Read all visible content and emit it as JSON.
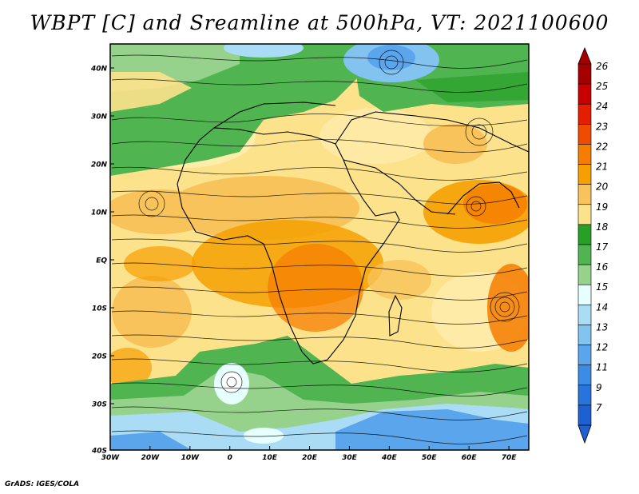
{
  "title": "WBPT [C] and Sreamline at 500hPa, VT: 2021100600",
  "credit": "GrADS: IGES/COLA",
  "map": {
    "lat_labels": [
      "40N",
      "30N",
      "20N",
      "10N",
      "EQ",
      "10S",
      "20S",
      "30S",
      "40S"
    ],
    "lon_labels": [
      "30W",
      "20W",
      "10W",
      "0",
      "10E",
      "20E",
      "30E",
      "40E",
      "50E",
      "60E",
      "70E"
    ]
  },
  "colorbar": {
    "labels": [
      "26",
      "25",
      "24",
      "23",
      "22",
      "21",
      "20",
      "19",
      "18",
      "17",
      "16",
      "15",
      "14",
      "13",
      "12",
      "11",
      "9",
      "7"
    ],
    "colors": [
      "#a50000",
      "#c80000",
      "#e61e00",
      "#f04c00",
      "#f57d00",
      "#f5a000",
      "#f8c35a",
      "#fde28c",
      "#28a028",
      "#50b450",
      "#96d28c",
      "#e6ffff",
      "#aadcf5",
      "#82c3f0",
      "#5aa5eb",
      "#3c8ce6",
      "#2873dc",
      "#1e5fd2"
    ]
  }
}
